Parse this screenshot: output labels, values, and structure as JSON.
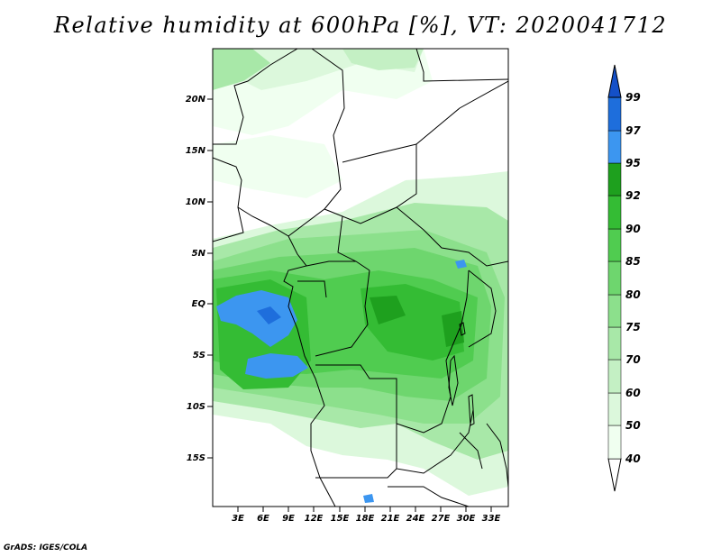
{
  "title": "Relative humidity at 600hPa [%], VT: 2020041712",
  "credit": "GrADS: IGES/COLA",
  "map": {
    "lon_range": [
      0,
      35
    ],
    "lat_range": [
      -20,
      25
    ],
    "lon_ticks": [
      "3E",
      "6E",
      "9E",
      "12E",
      "15E",
      "18E",
      "21E",
      "24E",
      "27E",
      "30E",
      "33E"
    ],
    "lat_ticks": [
      "20N",
      "15N",
      "10N",
      "5N",
      "EQ",
      "5S",
      "10S",
      "15S"
    ]
  },
  "colorbar": {
    "levels": [
      "40",
      "50",
      "60",
      "70",
      "75",
      "80",
      "85",
      "90",
      "92",
      "95",
      "97",
      "99"
    ],
    "colors": [
      "#f0fff0",
      "#dcf8dc",
      "#c4f0c4",
      "#a8e8a8",
      "#8ce08c",
      "#6ed66e",
      "#50cc50",
      "#34bc34",
      "#1ea01e",
      "#3c96f0",
      "#1e6edc",
      "#1450c8"
    ]
  }
}
